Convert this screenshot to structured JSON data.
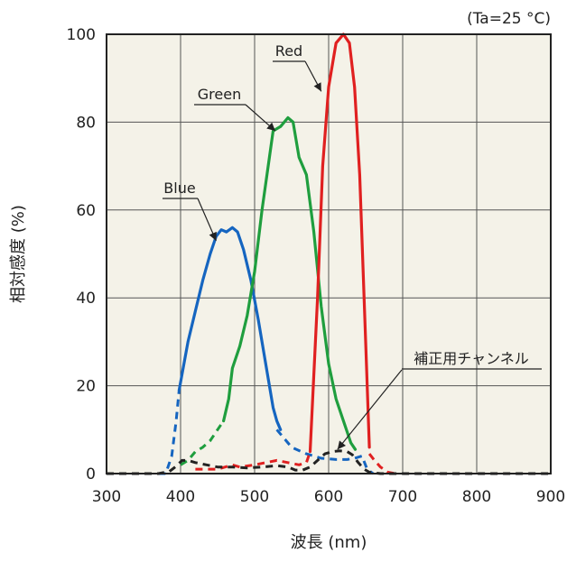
{
  "chart_data": {
    "type": "line",
    "note": "(Ta=25 °C)",
    "xlabel": "波長 (nm)",
    "ylabel": "相対感度 (%)",
    "xlim": [
      300,
      900
    ],
    "ylim": [
      0,
      100
    ],
    "x_ticks": [
      300,
      400,
      500,
      600,
      700,
      800,
      900
    ],
    "y_ticks": [
      0,
      20,
      40,
      60,
      80,
      100
    ],
    "grid": true,
    "plot_background": "#f4f2e8",
    "series": [
      {
        "name": "Blue",
        "color": "#1565c0",
        "dashed_segments": [
          [
            [
              370,
              0
            ],
            [
              380,
              0
            ],
            [
              388,
              4
            ],
            [
              394,
              12
            ],
            [
              398,
              19
            ]
          ],
          [
            [
              530,
              10
            ],
            [
              550,
              6
            ],
            [
              570,
              4.5
            ],
            [
              590,
              3.5
            ],
            [
              610,
              3.2
            ],
            [
              625,
              3.2
            ],
            [
              635,
              3.5
            ],
            [
              645,
              4
            ],
            [
              652,
              1
            ],
            [
              660,
              0
            ]
          ]
        ],
        "solid_segments": [
          [
            [
              398,
              19
            ],
            [
              410,
              30
            ],
            [
              420,
              37
            ],
            [
              430,
              44
            ],
            [
              440,
              50
            ],
            [
              448,
              54
            ],
            [
              455,
              55.5
            ],
            [
              462,
              55
            ],
            [
              470,
              56
            ],
            [
              477,
              55
            ],
            [
              485,
              51
            ],
            [
              495,
              44
            ],
            [
              505,
              35
            ],
            [
              515,
              25
            ],
            [
              525,
              15
            ],
            [
              530,
              12
            ],
            [
              535,
              10
            ]
          ]
        ]
      },
      {
        "name": "Green",
        "color": "#1f9e3e",
        "dashed_segments": [
          [
            [
              400,
              2
            ],
            [
              410,
              3
            ],
            [
              420,
              5
            ],
            [
              430,
              6
            ],
            [
              440,
              7.5
            ],
            [
              450,
              10
            ],
            [
              458,
              12
            ]
          ]
        ],
        "solid_segments": [
          [
            [
              458,
              12
            ],
            [
              465,
              17
            ],
            [
              470,
              24
            ],
            [
              480,
              29
            ],
            [
              490,
              36
            ],
            [
              500,
              46
            ],
            [
              510,
              60
            ],
            [
              520,
              72
            ],
            [
              525,
              78
            ],
            [
              535,
              79
            ],
            [
              545,
              81
            ],
            [
              552,
              80
            ],
            [
              560,
              72
            ],
            [
              570,
              68
            ],
            [
              580,
              55
            ],
            [
              590,
              38
            ],
            [
              600,
              25
            ],
            [
              610,
              17
            ],
            [
              620,
              12
            ],
            [
              630,
              7
            ],
            [
              636,
              5.5
            ]
          ]
        ]
      },
      {
        "name": "Red",
        "color": "#e02020",
        "dashed_segments": [
          [
            [
              420,
              1
            ],
            [
              450,
              1
            ],
            [
              470,
              2
            ],
            [
              480,
              1.5
            ],
            [
              500,
              2
            ],
            [
              515,
              2.5
            ],
            [
              530,
              3
            ],
            [
              545,
              2.5
            ],
            [
              560,
              2
            ],
            [
              570,
              2.5
            ],
            [
              575,
              5
            ]
          ],
          [
            [
              655,
              4.5
            ],
            [
              662,
              3
            ],
            [
              670,
              1.5
            ],
            [
              680,
              0.3
            ],
            [
              690,
              0
            ]
          ]
        ],
        "solid_segments": [
          [
            [
              575,
              5
            ],
            [
              585,
              40
            ],
            [
              592,
              70
            ],
            [
              600,
              88
            ],
            [
              610,
              98
            ],
            [
              620,
              100
            ],
            [
              628,
              98
            ],
            [
              635,
              88
            ],
            [
              642,
              68
            ],
            [
              650,
              30
            ],
            [
              655,
              6
            ]
          ]
        ]
      },
      {
        "name": "補正用チャンネル",
        "color": "#222222",
        "dashed_segments": [
          [
            [
              300,
              0
            ],
            [
              370,
              0
            ],
            [
              385,
              0.5
            ],
            [
              395,
              1.8
            ],
            [
              402,
              3
            ],
            [
              410,
              3
            ],
            [
              420,
              2.5
            ],
            [
              435,
              2
            ],
            [
              450,
              1.5
            ],
            [
              470,
              1.5
            ],
            [
              490,
              1.3
            ],
            [
              510,
              1.5
            ],
            [
              530,
              1.8
            ],
            [
              545,
              1.5
            ],
            [
              555,
              0.8
            ],
            [
              565,
              0.8
            ],
            [
              575,
              1.5
            ],
            [
              585,
              3
            ],
            [
              595,
              4.5
            ],
            [
              605,
              5
            ],
            [
              615,
              5.2
            ],
            [
              625,
              5
            ],
            [
              632,
              4.3
            ],
            [
              640,
              2.5
            ],
            [
              648,
              1
            ],
            [
              655,
              0.3
            ],
            [
              670,
              0
            ],
            [
              900,
              0
            ]
          ]
        ],
        "solid_segments": []
      }
    ],
    "annotations": [
      {
        "text": "Red",
        "target_series": "Red"
      },
      {
        "text": "Green",
        "target_series": "Green"
      },
      {
        "text": "Blue",
        "target_series": "Blue"
      },
      {
        "text": "補正用チャンネル",
        "target_series": "補正用チャンネル"
      }
    ]
  }
}
